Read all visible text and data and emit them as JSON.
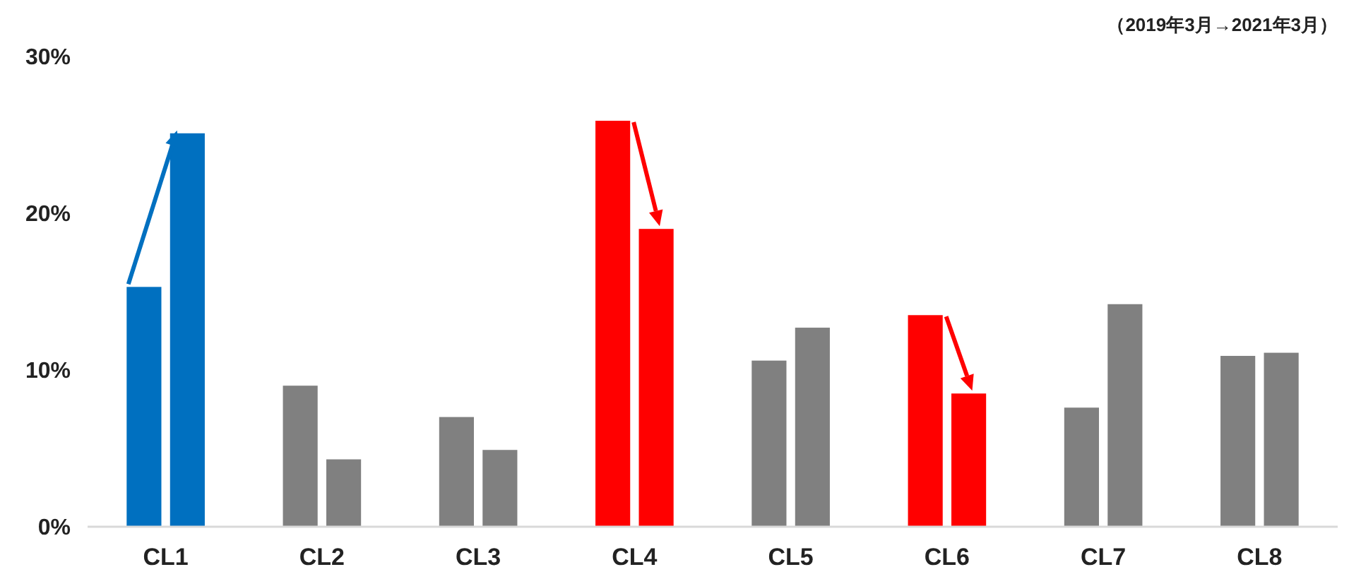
{
  "chart_data": {
    "type": "bar",
    "categories": [
      "CL1",
      "CL2",
      "CL3",
      "CL4",
      "CL5",
      "CL6",
      "CL7",
      "CL8"
    ],
    "series": [
      {
        "colors": [
          "#0070c0",
          "#808080",
          "#808080",
          "#ff0000",
          "#808080",
          "#ff0000",
          "#808080",
          "#808080"
        ],
        "values": [
          15.3,
          9.0,
          7.0,
          25.9,
          10.6,
          13.5,
          7.6,
          10.9
        ]
      },
      {
        "colors": [
          "#0070c0",
          "#808080",
          "#808080",
          "#ff0000",
          "#808080",
          "#ff0000",
          "#808080",
          "#808080"
        ],
        "values": [
          25.1,
          4.3,
          4.9,
          19.0,
          12.7,
          8.5,
          14.2,
          11.1
        ]
      }
    ],
    "ylim": [
      0,
      30
    ],
    "yticks": [
      {
        "value": 0,
        "label": "0%"
      },
      {
        "value": 10,
        "label": "10%"
      },
      {
        "value": 20,
        "label": "20%"
      },
      {
        "value": 30,
        "label": "30%"
      }
    ],
    "grid": false,
    "annotations": [
      "（2019年3月→2021年3月）"
    ]
  }
}
